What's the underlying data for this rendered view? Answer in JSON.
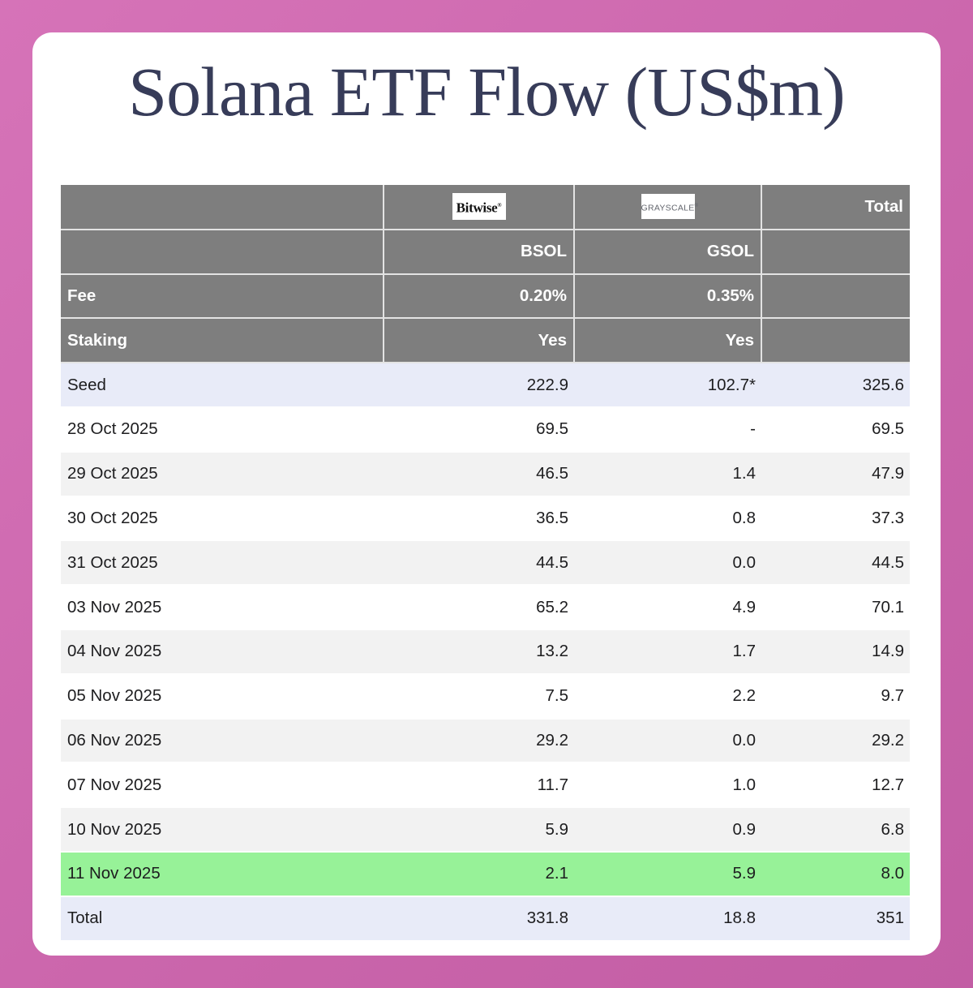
{
  "colors": {
    "page_background": "#cb66ac",
    "card_background": "#ffffff",
    "header_gray": "#7e7e7e",
    "header_text": "#ffffff",
    "seed_total_row_background": "#e8ebf8",
    "stripe_row_background": "#f2f2f2",
    "highlight_row_background": "#97f298",
    "title_text": "#373c59",
    "body_text": "#1d1d1f"
  },
  "header": {
    "bitwise_logo_text": "Bitwise",
    "bitwise_reg_mark": "®",
    "grayscale_logo_text": "GRAYSCALE",
    "grayscale_reg_mark": "®",
    "total_label": "Total",
    "ticker_bsol": "BSOL",
    "ticker_gsol": "GSOL",
    "fee_label": "Fee",
    "fee_bsol": "0.20%",
    "fee_gsol": "0.35%",
    "staking_label": "Staking",
    "staking_bsol": "Yes",
    "staking_gsol": "Yes"
  },
  "chart_data": {
    "type": "table",
    "title": "Solana ETF Flow (US$m)",
    "columns": [
      "",
      "BSOL",
      "GSOL",
      "Total"
    ],
    "funds": [
      {
        "issuer": "Bitwise",
        "ticker": "BSOL",
        "fee": "0.20%",
        "staking": "Yes"
      },
      {
        "issuer": "Grayscale",
        "ticker": "GSOL",
        "fee": "0.35%",
        "staking": "Yes"
      }
    ],
    "rows": [
      {
        "label": "Seed",
        "bsol": "222.9",
        "gsol": "102.7*",
        "total": "325.6",
        "highlight": "seed"
      },
      {
        "label": "28 Oct 2025",
        "bsol": "69.5",
        "gsol": "-",
        "total": "69.5",
        "highlight": "none"
      },
      {
        "label": "29 Oct 2025",
        "bsol": "46.5",
        "gsol": "1.4",
        "total": "47.9",
        "highlight": "none"
      },
      {
        "label": "30 Oct 2025",
        "bsol": "36.5",
        "gsol": "0.8",
        "total": "37.3",
        "highlight": "none"
      },
      {
        "label": "31 Oct 2025",
        "bsol": "44.5",
        "gsol": "0.0",
        "total": "44.5",
        "highlight": "none"
      },
      {
        "label": "03 Nov 2025",
        "bsol": "65.2",
        "gsol": "4.9",
        "total": "70.1",
        "highlight": "none"
      },
      {
        "label": "04 Nov 2025",
        "bsol": "13.2",
        "gsol": "1.7",
        "total": "14.9",
        "highlight": "none"
      },
      {
        "label": "05 Nov 2025",
        "bsol": "7.5",
        "gsol": "2.2",
        "total": "9.7",
        "highlight": "none"
      },
      {
        "label": "06 Nov 2025",
        "bsol": "29.2",
        "gsol": "0.0",
        "total": "29.2",
        "highlight": "none"
      },
      {
        "label": "07 Nov 2025",
        "bsol": "11.7",
        "gsol": "1.0",
        "total": "12.7",
        "highlight": "none"
      },
      {
        "label": "10 Nov 2025",
        "bsol": "5.9",
        "gsol": "0.9",
        "total": "6.8",
        "highlight": "none"
      },
      {
        "label": "11 Nov 2025",
        "bsol": "2.1",
        "gsol": "5.9",
        "total": "8.0",
        "highlight": "latest-day-green"
      },
      {
        "label": "Total",
        "bsol": "331.8",
        "gsol": "18.8",
        "total": "351",
        "highlight": "grand-total"
      }
    ]
  }
}
